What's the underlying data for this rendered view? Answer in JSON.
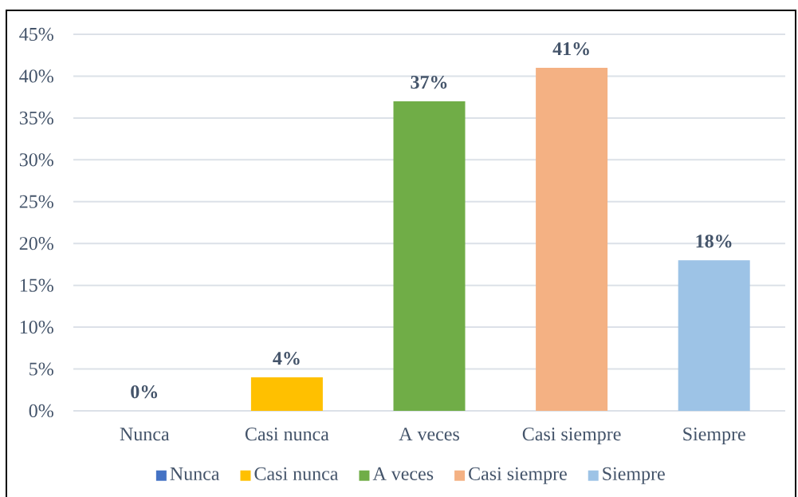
{
  "chart_data": {
    "type": "bar",
    "categories": [
      "Nunca",
      "Casi nunca",
      "A veces",
      "Casi siempre",
      "Siempre"
    ],
    "series": [
      {
        "name": "Nunca",
        "color": "#4472c4",
        "values": [
          0,
          null,
          null,
          null,
          null
        ],
        "value_labels": [
          "0%",
          null,
          null,
          null,
          null
        ]
      },
      {
        "name": "Casi nunca",
        "color": "#ffc000",
        "values": [
          null,
          4,
          null,
          null,
          null
        ],
        "value_labels": [
          null,
          "4%",
          null,
          null,
          null
        ]
      },
      {
        "name": "A veces",
        "color": "#70ad47",
        "values": [
          null,
          null,
          37,
          null,
          null
        ],
        "value_labels": [
          null,
          null,
          "37%",
          null,
          null
        ]
      },
      {
        "name": "Casi siempre",
        "color": "#f4b183",
        "values": [
          null,
          null,
          null,
          41,
          null
        ],
        "value_labels": [
          null,
          null,
          null,
          "41%",
          null
        ]
      },
      {
        "name": "Siempre",
        "color": "#9dc3e6",
        "values": [
          null,
          null,
          null,
          null,
          18
        ],
        "value_labels": [
          null,
          null,
          null,
          null,
          "18%"
        ]
      }
    ],
    "ylim": [
      0,
      45
    ],
    "yticks": [
      {
        "value": 0,
        "label": "0%"
      },
      {
        "value": 5,
        "label": "5%"
      },
      {
        "value": 10,
        "label": "10%"
      },
      {
        "value": 15,
        "label": "15%"
      },
      {
        "value": 20,
        "label": "20%"
      },
      {
        "value": 25,
        "label": "25%"
      },
      {
        "value": 30,
        "label": "30%"
      },
      {
        "value": 35,
        "label": "35%"
      },
      {
        "value": 40,
        "label": "40%"
      },
      {
        "value": 45,
        "label": "45%"
      }
    ],
    "grid": "y",
    "legend": "bottom"
  }
}
